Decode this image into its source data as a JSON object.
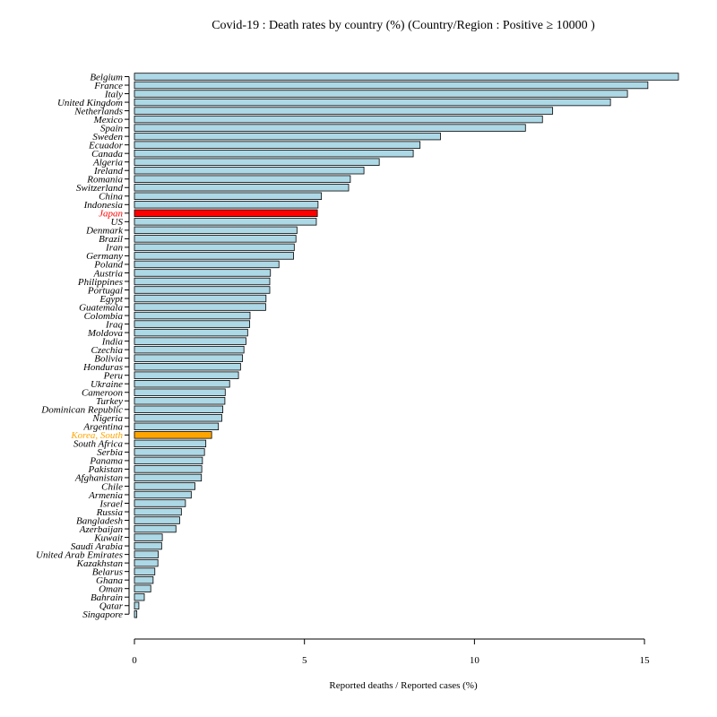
{
  "chart_data": {
    "type": "bar",
    "orientation": "horizontal",
    "title": "Covid-19 : Death rates by country (%) (Country/Region :   Positive ≥ 10000  )",
    "xlabel": "Reported deaths / Reported cases (%)",
    "ylabel": "",
    "xlim": [
      0,
      16
    ],
    "xticks": [
      0,
      5,
      10,
      15
    ],
    "colors": {
      "default": "#add8e6",
      "highlight_japan": "#ff0000",
      "highlight_korea": "#ffa500",
      "bar_border": "#000000"
    },
    "categories": [
      "Belgium",
      "France",
      "Italy",
      "United Kingdom",
      "Netherlands",
      "Mexico",
      "Spain",
      "Sweden",
      "Ecuador",
      "Canada",
      "Algeria",
      "Ireland",
      "Romania",
      "Switzerland",
      "China",
      "Indonesia",
      "Japan",
      "US",
      "Denmark",
      "Brazil",
      "Iran",
      "Germany",
      "Poland",
      "Austria",
      "Philippines",
      "Portugal",
      "Egypt",
      "Guatemala",
      "Colombia",
      "Iraq",
      "Moldova",
      "India",
      "Czechia",
      "Bolivia",
      "Honduras",
      "Peru",
      "Ukraine",
      "Cameroon",
      "Turkey",
      "Dominican Republic",
      "Nigeria",
      "Argentina",
      "Korea, South",
      "South Africa",
      "Serbia",
      "Panama",
      "Pakistan",
      "Afghanistan",
      "Chile",
      "Armenia",
      "Israel",
      "Russia",
      "Bangladesh",
      "Azerbaijan",
      "Kuwait",
      "Saudi Arabia",
      "United Arab Emirates",
      "Kazakhstan",
      "Belarus",
      "Ghana",
      "Oman",
      "Bahrain",
      "Qatar",
      "Singapore"
    ],
    "values": [
      16.0,
      15.1,
      14.5,
      14.0,
      12.3,
      12.0,
      11.5,
      9.0,
      8.4,
      8.2,
      7.2,
      6.75,
      6.35,
      6.3,
      5.5,
      5.4,
      5.38,
      5.35,
      4.78,
      4.75,
      4.7,
      4.68,
      4.25,
      4.0,
      3.98,
      3.98,
      3.87,
      3.86,
      3.4,
      3.39,
      3.33,
      3.28,
      3.22,
      3.18,
      3.12,
      3.06,
      2.8,
      2.67,
      2.66,
      2.6,
      2.57,
      2.47,
      2.27,
      2.1,
      2.06,
      2.0,
      1.98,
      1.97,
      1.78,
      1.67,
      1.5,
      1.38,
      1.33,
      1.22,
      0.82,
      0.8,
      0.7,
      0.69,
      0.6,
      0.55,
      0.48,
      0.29,
      0.13,
      0.07
    ],
    "highlights": {
      "Japan": "#ff0000",
      "Korea, South": "#ffa500"
    }
  }
}
